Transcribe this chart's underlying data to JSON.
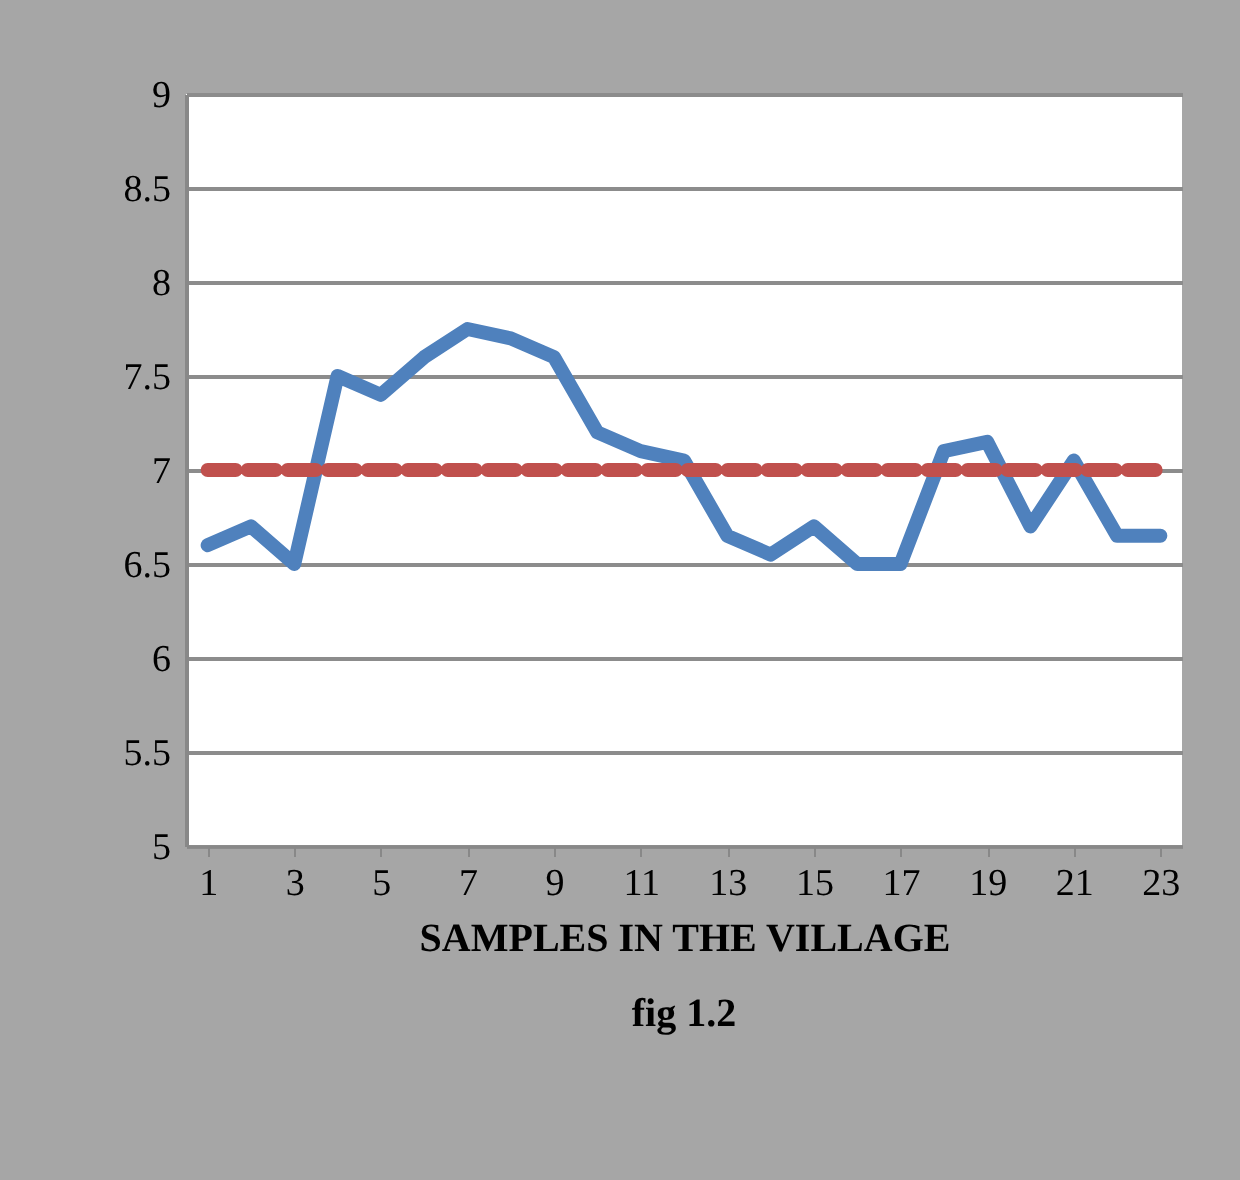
{
  "chart_data": {
    "type": "line",
    "xlabel": "SAMPLES IN THE VILLAGE",
    "annotations": [
      "fig 1.2"
    ],
    "x": [
      1,
      2,
      3,
      4,
      5,
      6,
      7,
      8,
      9,
      10,
      11,
      12,
      13,
      14,
      15,
      16,
      17,
      18,
      19,
      20,
      21,
      22,
      23
    ],
    "series": [
      {
        "color": "#4f81bd",
        "line_style": "solid",
        "values": [
          6.6,
          6.7,
          6.5,
          7.5,
          7.4,
          7.6,
          7.75,
          7.7,
          7.6,
          7.2,
          7.1,
          7.05,
          6.65,
          6.55,
          6.7,
          6.5,
          6.5,
          7.1,
          7.15,
          6.7,
          7.05,
          6.65,
          6.65
        ]
      },
      {
        "color": "#c0504d",
        "line_style": "dashed",
        "values": [
          7,
          7,
          7,
          7,
          7,
          7,
          7,
          7,
          7,
          7,
          7,
          7,
          7,
          7,
          7,
          7,
          7,
          7,
          7,
          7,
          7,
          7,
          7
        ]
      }
    ],
    "xlim": [
      0.5,
      23.5
    ],
    "xticks": [
      1,
      3,
      5,
      7,
      9,
      11,
      13,
      15,
      17,
      19,
      21,
      23
    ],
    "ylim": [
      5,
      9
    ],
    "yticks": [
      5,
      5.5,
      6,
      6.5,
      7,
      7.5,
      8,
      8.5,
      9
    ],
    "grid": "y",
    "marker": "none"
  }
}
